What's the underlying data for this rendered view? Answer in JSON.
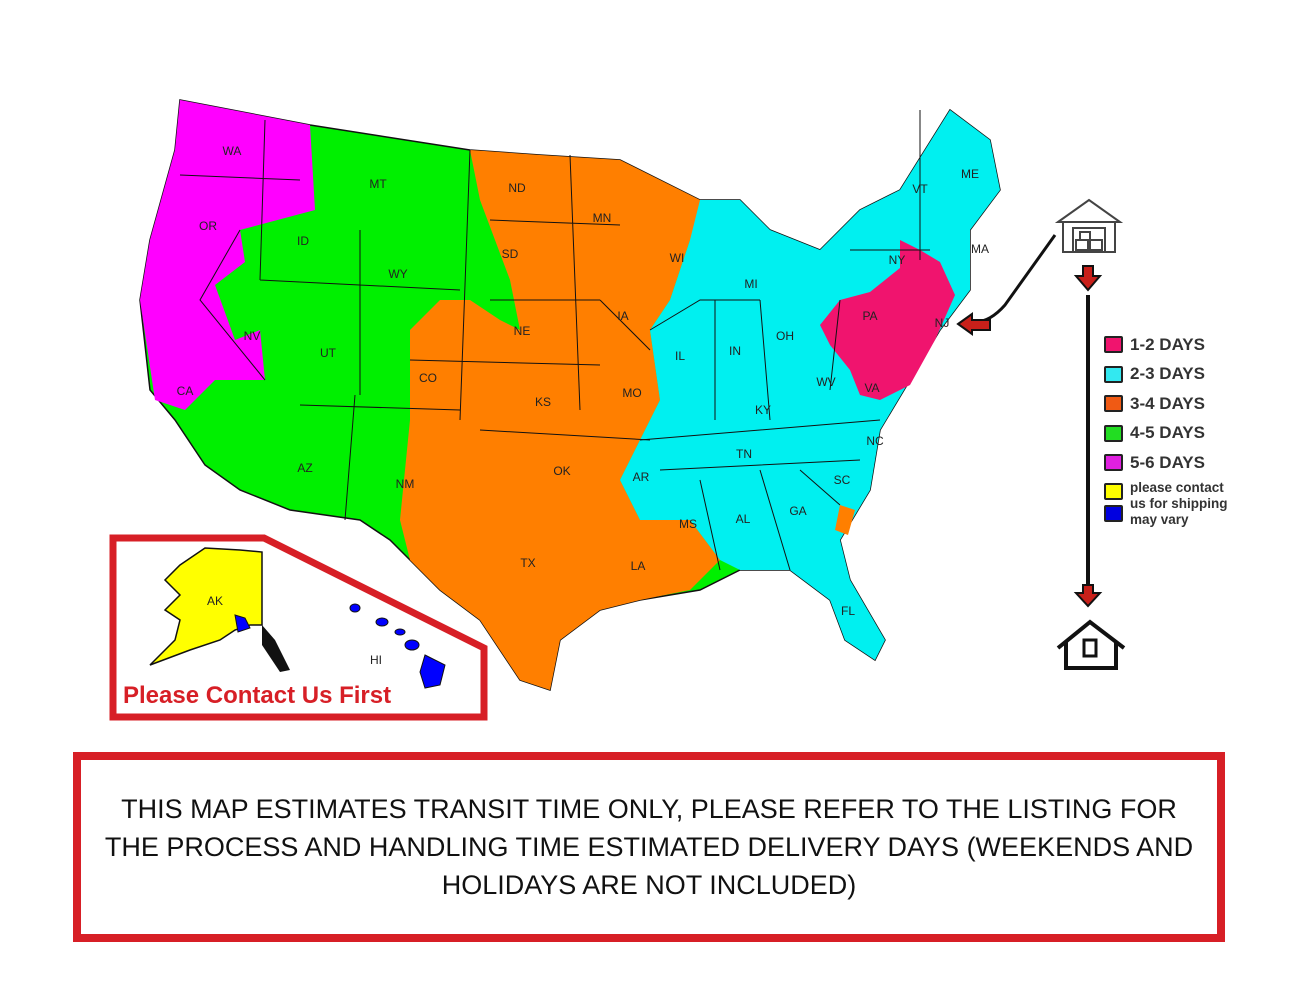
{
  "map": {
    "zone_colors": {
      "1-2": "#f0146e",
      "2-3": "#00f0f0",
      "3-4": "#ff7f00",
      "4-5": "#00f000",
      "5-6": "#ff00ff",
      "contact": "#ffff00",
      "vary": "#0000ff"
    },
    "state_labels": [
      "WA",
      "OR",
      "CA",
      "ID",
      "NV",
      "MT",
      "WY",
      "UT",
      "AZ",
      "CO",
      "NM",
      "ND",
      "SD",
      "NE",
      "KS",
      "OK",
      "TX",
      "MN",
      "IA",
      "MO",
      "AR",
      "LA",
      "WI",
      "IL",
      "MI",
      "IN",
      "OH",
      "KY",
      "TN",
      "MS",
      "AL",
      "GA",
      "FL",
      "SC",
      "NC",
      "WV",
      "VA",
      "PA",
      "NY",
      "VT",
      "ME",
      "MA",
      "NJ",
      "AK",
      "HI"
    ],
    "inset_label": "Please Contact Us First"
  },
  "legend": {
    "items": [
      {
        "label": "1-2 DAYS",
        "color": "#f0146e"
      },
      {
        "label": "2-3 DAYS",
        "color": "#33e8f0"
      },
      {
        "label": "3-4 DAYS",
        "color": "#f05a14"
      },
      {
        "label": "4-5 DAYS",
        "color": "#22dd22"
      },
      {
        "label": "5-6 DAYS",
        "color": "#e020e0"
      }
    ],
    "contact_lines": [
      "please contact",
      "us for shipping",
      "may vary"
    ],
    "contact_colors": [
      "#ffff00",
      "#0000e0"
    ],
    "origin_icon": "warehouse-icon",
    "destination_icon": "house-icon"
  },
  "note": {
    "text": "THIS MAP ESTIMATES TRANSIT TIME ONLY, PLEASE REFER TO THE LISTING FOR THE PROCESS AND HANDLING TIME ESTIMATED DELIVERY DAYS (WEEKENDS AND HOLIDAYS ARE NOT INCLUDED)"
  }
}
